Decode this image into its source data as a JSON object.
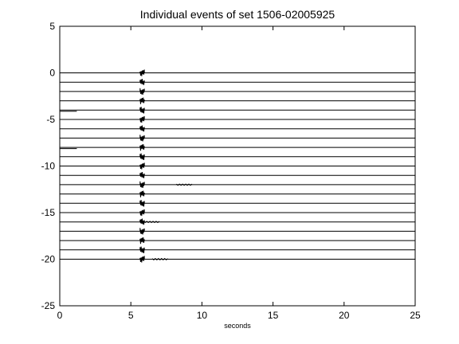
{
  "chart_data": {
    "type": "line",
    "title": "Individual events of set 1506-02005925",
    "xlabel": "seconds",
    "ylabel": "",
    "xlim": [
      0,
      25
    ],
    "ylim": [
      -25,
      5
    ],
    "xticks": [
      0,
      5,
      10,
      15,
      20,
      25
    ],
    "yticks": [
      5,
      0,
      -5,
      -10,
      -15,
      -20,
      -25
    ],
    "xtick_labels": [
      "0",
      "5",
      "10",
      "15",
      "20",
      "25"
    ],
    "ytick_labels": [
      "5",
      "0",
      "-5",
      "-10",
      "-15",
      "-20",
      "-25"
    ],
    "grid": false,
    "legend": "none",
    "line_color": "#000000",
    "traces": {
      "offsets": [
        0,
        -1,
        -2,
        -3,
        -4,
        -5,
        -6,
        -7,
        -8,
        -9,
        -10,
        -11,
        -12,
        -13,
        -14,
        -15,
        -16,
        -17,
        -18,
        -19,
        -20
      ],
      "x_range": [
        0,
        25
      ],
      "event_time": 5.8,
      "event_amplitude": 0.35,
      "event_duration": 0.15
    },
    "short_segments": [
      {
        "offset": -4,
        "x": [
          0,
          1.2
        ]
      },
      {
        "offset": -8,
        "x": [
          0,
          1.2
        ]
      }
    ],
    "secondary_events": [
      {
        "offset": -12,
        "x": [
          8.2,
          9.3
        ]
      },
      {
        "offset": -16,
        "x": [
          5.9,
          7.0
        ]
      },
      {
        "offset": -20,
        "x": [
          6.5,
          7.6
        ]
      }
    ]
  }
}
